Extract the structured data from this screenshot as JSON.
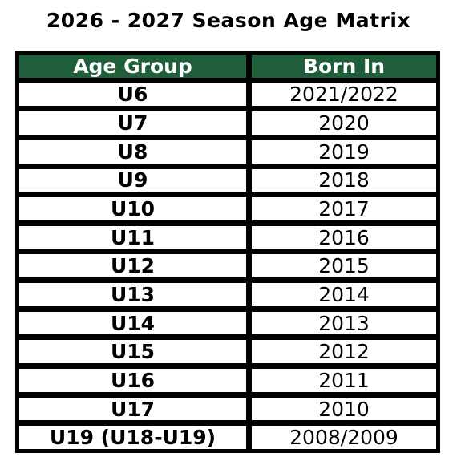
{
  "title": "2026 - 2027 Season Age Matrix",
  "colors": {
    "header_bg": "#1f5e3a",
    "header_text": "#ffffff",
    "border": "#000000"
  },
  "table": {
    "headers": {
      "age_group": "Age Group",
      "born_in": "Born In"
    },
    "rows": [
      {
        "age_group": "U6",
        "born_in": "2021/2022"
      },
      {
        "age_group": "U7",
        "born_in": "2020"
      },
      {
        "age_group": "U8",
        "born_in": "2019"
      },
      {
        "age_group": "U9",
        "born_in": "2018"
      },
      {
        "age_group": "U10",
        "born_in": "2017"
      },
      {
        "age_group": "U11",
        "born_in": "2016"
      },
      {
        "age_group": "U12",
        "born_in": "2015"
      },
      {
        "age_group": "U13",
        "born_in": "2014"
      },
      {
        "age_group": "U14",
        "born_in": "2013"
      },
      {
        "age_group": "U15",
        "born_in": "2012"
      },
      {
        "age_group": "U16",
        "born_in": "2011"
      },
      {
        "age_group": "U17",
        "born_in": "2010"
      },
      {
        "age_group": "U19 (U18-U19)",
        "born_in": "2008/2009"
      }
    ]
  }
}
